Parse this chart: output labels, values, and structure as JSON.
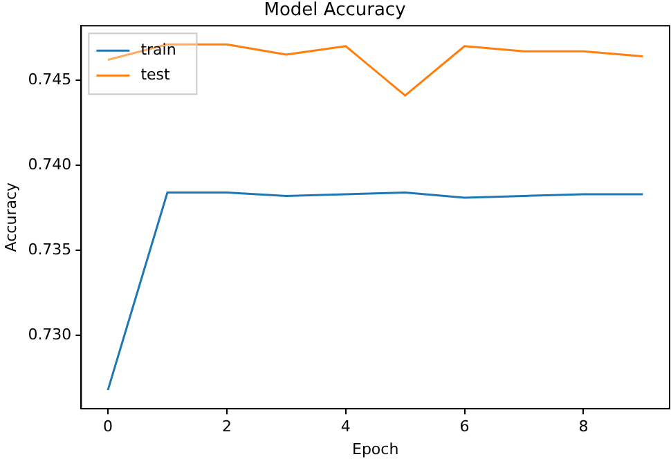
{
  "chart_data": {
    "type": "line",
    "title": "Model Accuracy",
    "xlabel": "Epoch",
    "ylabel": "Accuracy",
    "x": [
      0,
      1,
      2,
      3,
      4,
      5,
      6,
      7,
      8,
      9
    ],
    "series": [
      {
        "name": "train",
        "color": "#1f77b4",
        "values": [
          0.7268,
          0.7384,
          0.7384,
          0.7382,
          0.7383,
          0.7384,
          0.7381,
          0.7382,
          0.7383,
          0.7383
        ]
      },
      {
        "name": "test",
        "color": "#ff7f0e",
        "values": [
          0.7462,
          0.7471,
          0.7471,
          0.7465,
          0.747,
          0.7441,
          0.747,
          0.7467,
          0.7467,
          0.7464
        ]
      }
    ],
    "xlim": [
      -0.45,
      9.45
    ],
    "xticks": [
      0,
      2,
      4,
      6,
      8
    ],
    "ylim": [
      0.7257,
      0.7482
    ],
    "yticks": [
      {
        "value": 0.73,
        "label": "0.730"
      },
      0.735,
      {
        "value": 0.74,
        "label": "0.740"
      },
      0.745
    ],
    "grid": false,
    "legend": "top left",
    "marker": "none",
    "line_style": "solid"
  }
}
